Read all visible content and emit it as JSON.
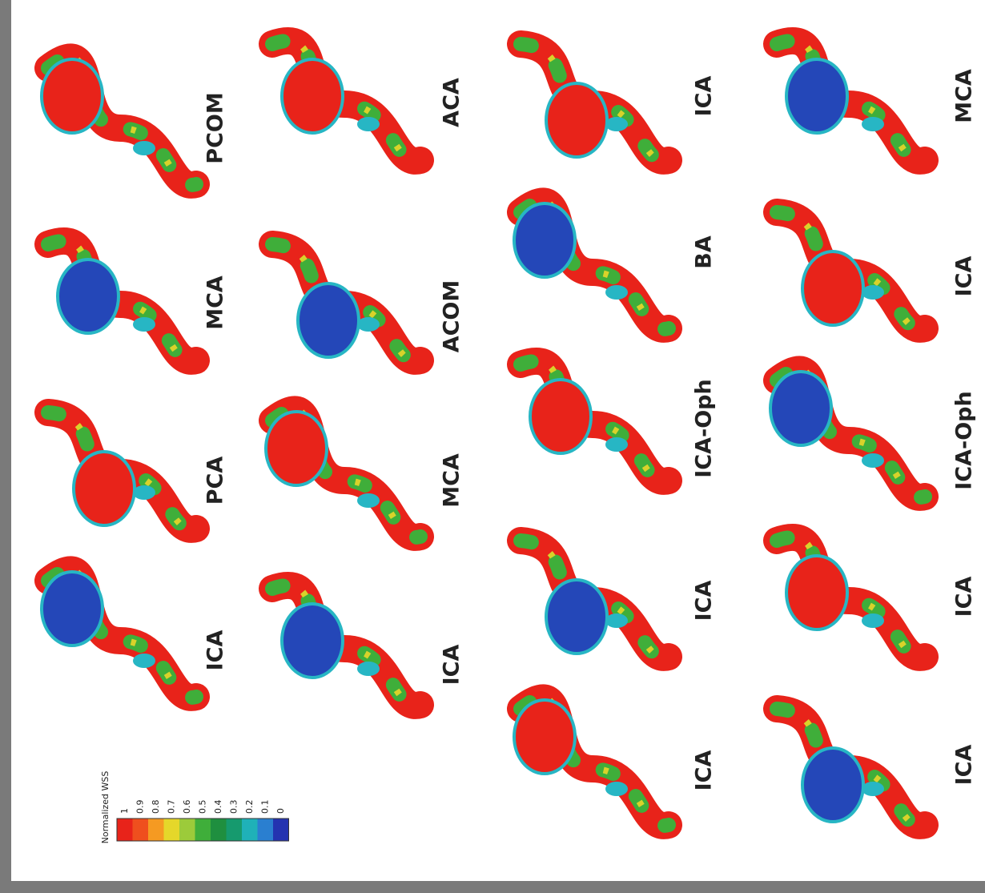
{
  "figure": {
    "colorbar": {
      "title": "Normalized WSS",
      "labels": [
        "1",
        "0.9",
        "0.8",
        "0.7",
        "0.6",
        "0.5",
        "0.4",
        "0.3",
        "0.2",
        "0.1",
        "0"
      ]
    },
    "panels": [
      {
        "label": "PCOM"
      },
      {
        "label": "MCA"
      },
      {
        "label": "PCA"
      },
      {
        "label": "ICA"
      },
      {
        "label": "ACA"
      },
      {
        "label": "ACOM"
      },
      {
        "label": "MCA"
      },
      {
        "label": "ICA"
      },
      {
        "label": "ICA"
      },
      {
        "label": "BA"
      },
      {
        "label": "ICA-Oph"
      },
      {
        "label": "ICA"
      },
      {
        "label": "ICA"
      },
      {
        "label": "MCA"
      },
      {
        "label": "ICA"
      },
      {
        "label": "ICA-Oph"
      },
      {
        "label": "ICA"
      },
      {
        "label": "ICA"
      }
    ]
  }
}
